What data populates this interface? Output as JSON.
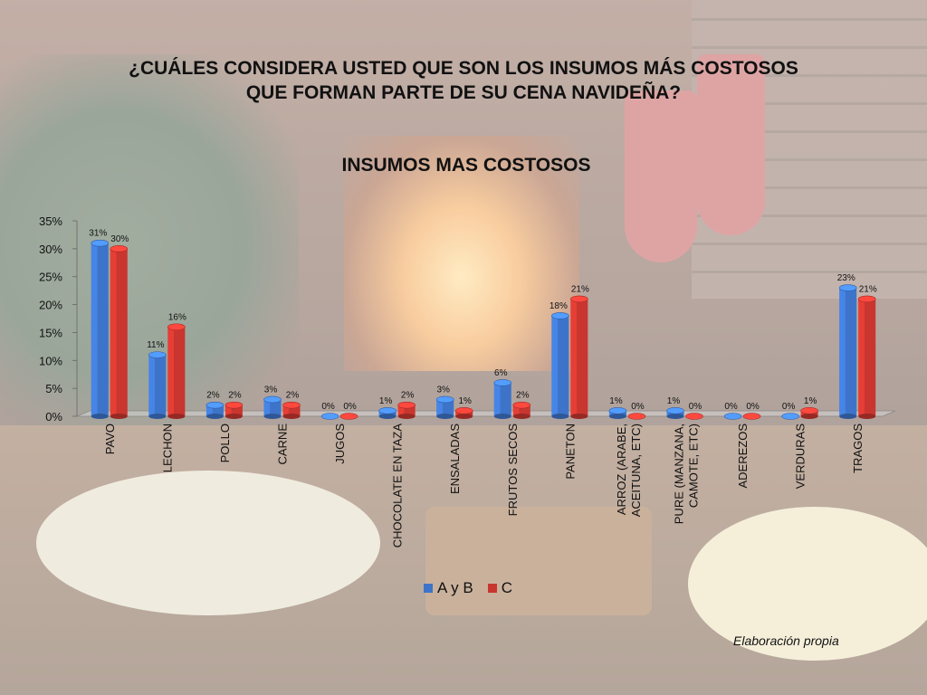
{
  "question": {
    "line1": "¿CUÁLES CONSIDERA USTED QUE SON LOS INSUMOS MÁS COSTOSOS",
    "line2": "QUE FORMAN PARTE DE SU CENA NAVIDEÑA?"
  },
  "source_note": "Elaboración propia",
  "chart_data": {
    "type": "bar",
    "title": "INSUMOS MAS COSTOSOS",
    "categories": [
      "PAVO",
      "LECHON",
      "POLLO",
      "CARNE",
      "JUGOS",
      "CHOCOLATE EN TAZA",
      "ENSALADAS",
      "FRUTOS SECOS",
      "PANETON",
      "ARROZ (ARABE, ACEITUNA, ETC)",
      "PURE (MANZANA, CAMOTE, ETC)",
      "ADEREZOS",
      "VERDURAS",
      "TRAGOS"
    ],
    "series": [
      {
        "name": "A y B",
        "color": "#3d74c9",
        "values": [
          31,
          11,
          2,
          3,
          0,
          1,
          3,
          6,
          18,
          1,
          1,
          0,
          0,
          23
        ]
      },
      {
        "name": "C",
        "color": "#c8362f",
        "values": [
          30,
          16,
          2,
          2,
          0,
          2,
          1,
          2,
          21,
          0,
          0,
          0,
          1,
          21
        ]
      }
    ],
    "value_suffix": "%",
    "ylim": [
      0,
      35
    ],
    "yticks": [
      "0%",
      "5%",
      "10%",
      "15%",
      "20%",
      "25%",
      "30%",
      "35%"
    ],
    "xlabel": "",
    "ylabel": "",
    "legend": "bottom"
  }
}
